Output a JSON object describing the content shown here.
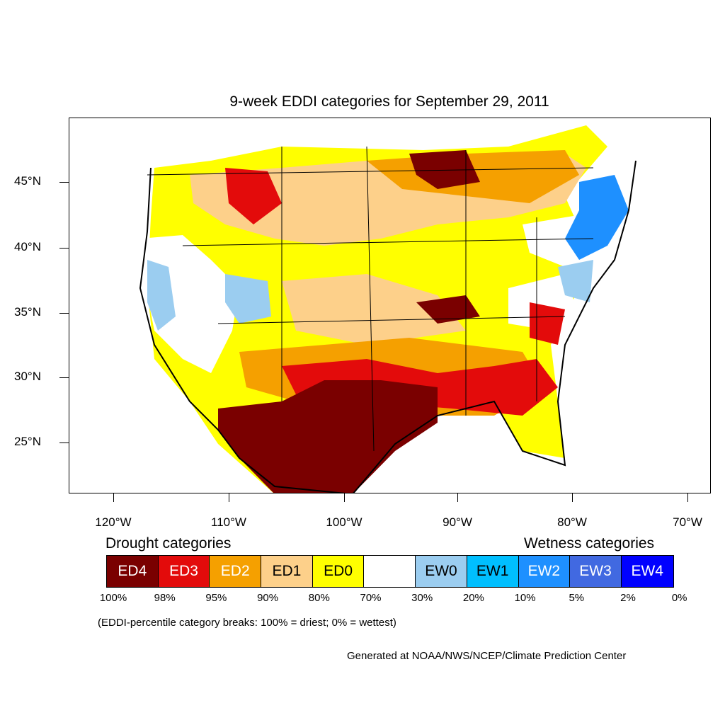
{
  "title": "9-week EDDI categories for September 29, 2011",
  "axes": {
    "lat_labels": [
      "45°N",
      "40°N",
      "35°N",
      "30°N",
      "25°N"
    ],
    "lon_labels": [
      "120°W",
      "110°W",
      "100°W",
      "90°W",
      "80°W",
      "70°W"
    ]
  },
  "legend": {
    "drought_heading": "Drought categories",
    "wetness_heading": "Wetness categories",
    "categories": [
      {
        "label": "ED4",
        "color": "#7a0000",
        "text_color": "#ffffff"
      },
      {
        "label": "ED3",
        "color": "#e30b0b",
        "text_color": "#ffffff"
      },
      {
        "label": "ED2",
        "color": "#f5a000",
        "text_color": "#ffffff"
      },
      {
        "label": "ED1",
        "color": "#fdd08a",
        "text_color": "#000000"
      },
      {
        "label": "ED0",
        "color": "#ffff00",
        "text_color": "#000000"
      },
      {
        "label": "",
        "color": "#ffffff",
        "text_color": "#000000"
      },
      {
        "label": "EW0",
        "color": "#9bcdf0",
        "text_color": "#000000"
      },
      {
        "label": "EW1",
        "color": "#00bfff",
        "text_color": "#000000"
      },
      {
        "label": "EW2",
        "color": "#1e90ff",
        "text_color": "#ffffff"
      },
      {
        "label": "EW3",
        "color": "#4169e1",
        "text_color": "#ffffff"
      },
      {
        "label": "EW4",
        "color": "#0000ff",
        "text_color": "#ffffff"
      }
    ],
    "breaks": [
      "100%",
      "98%",
      "95%",
      "90%",
      "80%",
      "70%",
      "30%",
      "20%",
      "10%",
      "5%",
      "2%",
      "0%"
    ]
  },
  "note": "(EDDI-percentile category breaks: 100% = driest; 0% = wettest)",
  "credit": "Generated at NOAA/NWS/NCEP/Climate Prediction Center"
}
